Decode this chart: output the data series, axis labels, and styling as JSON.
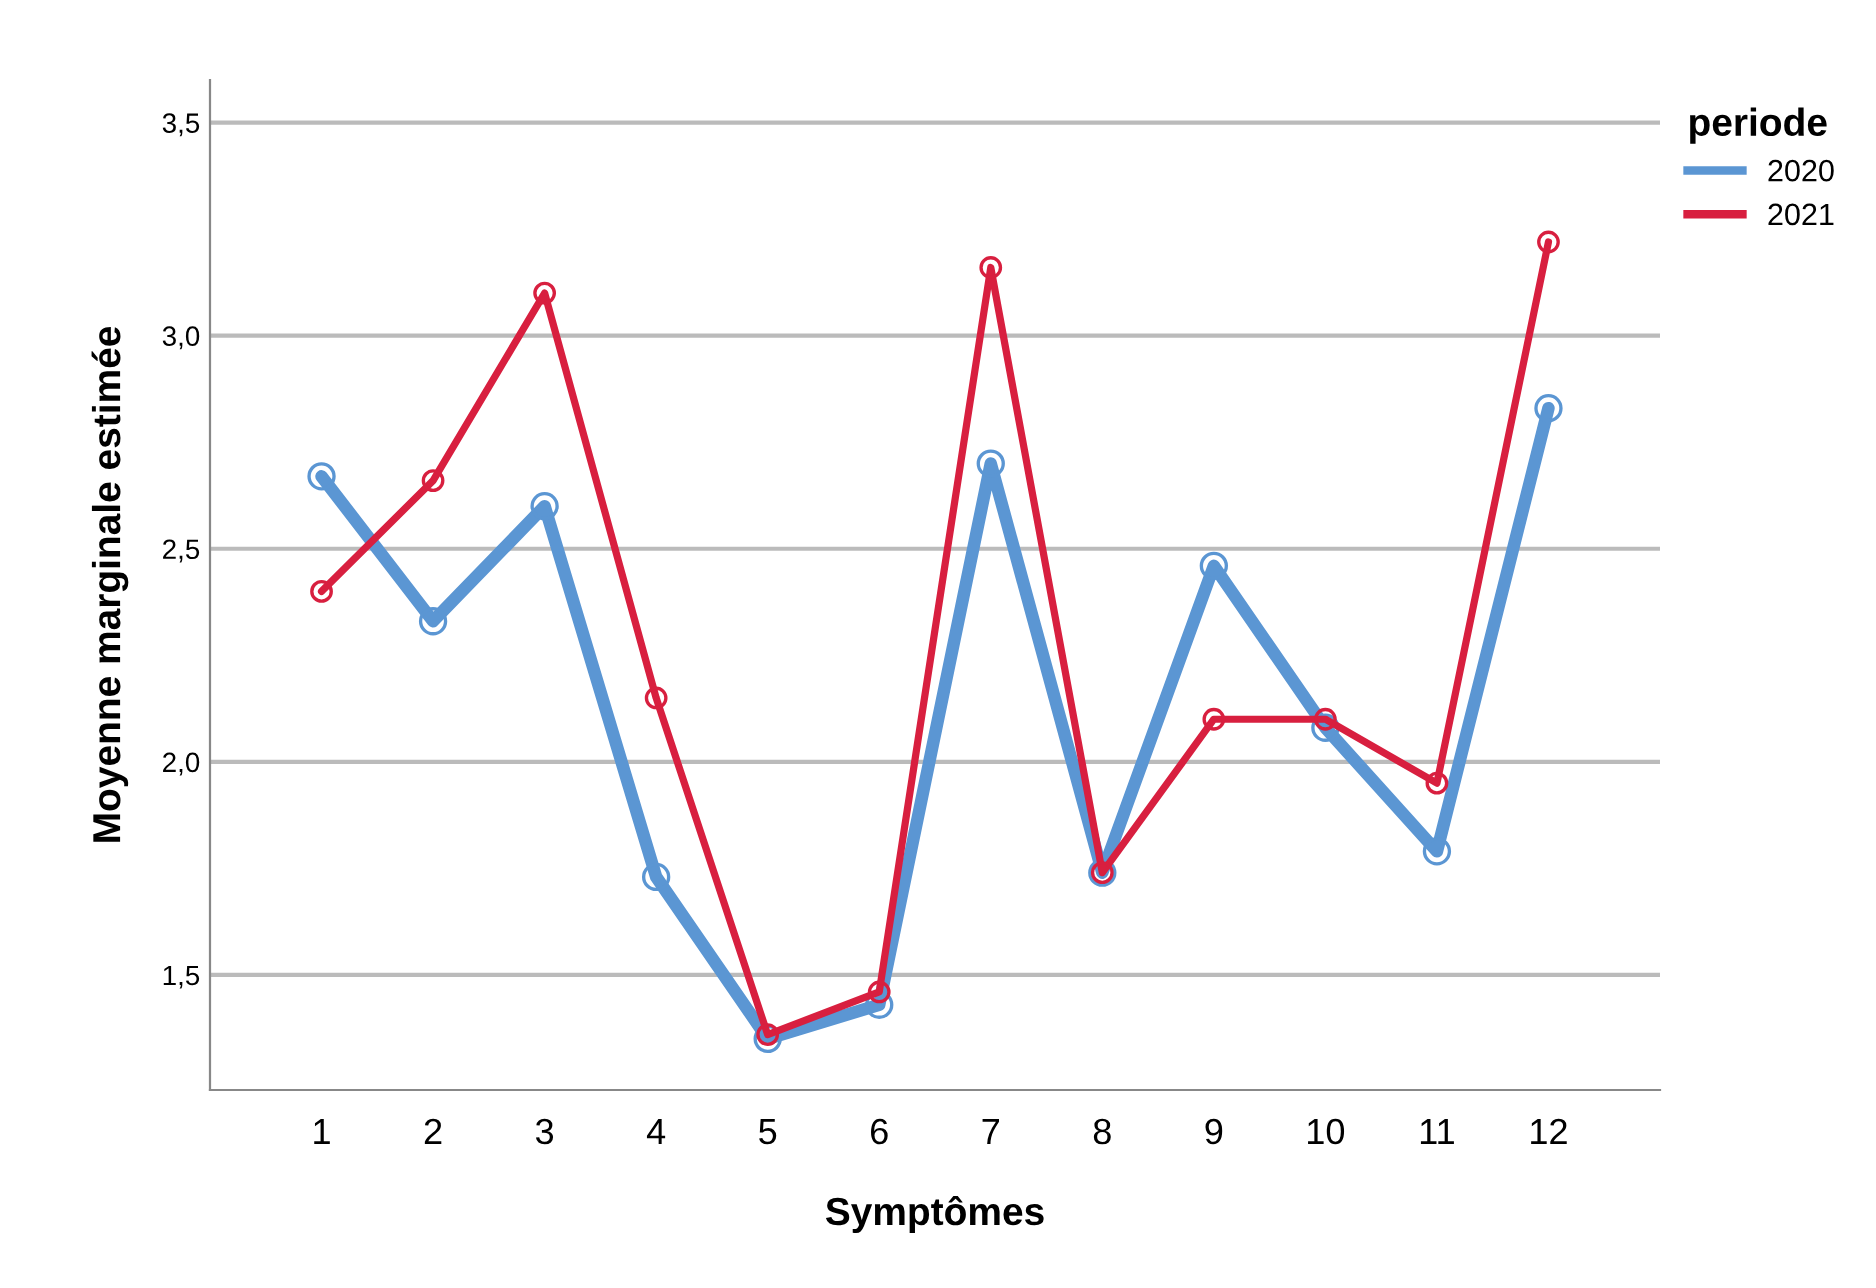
{
  "chart_data": {
    "type": "line",
    "xlabel": "Symptômes",
    "ylabel": "Moyenne marginale estimée",
    "legend_title": "periode",
    "categories": [
      "1",
      "2",
      "3",
      "4",
      "5",
      "6",
      "7",
      "8",
      "9",
      "10",
      "11",
      "12"
    ],
    "series": [
      {
        "name": "2020",
        "color": "#5b96d3",
        "values": [
          2.67,
          2.33,
          2.6,
          1.73,
          1.35,
          1.43,
          2.7,
          1.74,
          2.46,
          2.08,
          1.79,
          2.83
        ]
      },
      {
        "name": "2021",
        "color": "#d81f3f",
        "values": [
          2.4,
          2.66,
          3.1,
          2.15,
          1.36,
          1.46,
          3.16,
          1.74,
          2.1,
          2.1,
          1.95,
          3.22
        ]
      }
    ],
    "ylim": [
      1.23,
      3.6
    ],
    "yticks": [
      {
        "value": 1.5,
        "label": "1,5"
      },
      {
        "value": 2.0,
        "label": "2,0"
      },
      {
        "value": 2.5,
        "label": "2,5"
      },
      {
        "value": 3.0,
        "label": "3,0"
      },
      {
        "value": 3.5,
        "label": "3,5"
      }
    ],
    "grid": "y",
    "legend": "top right",
    "marker": "circle",
    "line_style": "solid"
  }
}
